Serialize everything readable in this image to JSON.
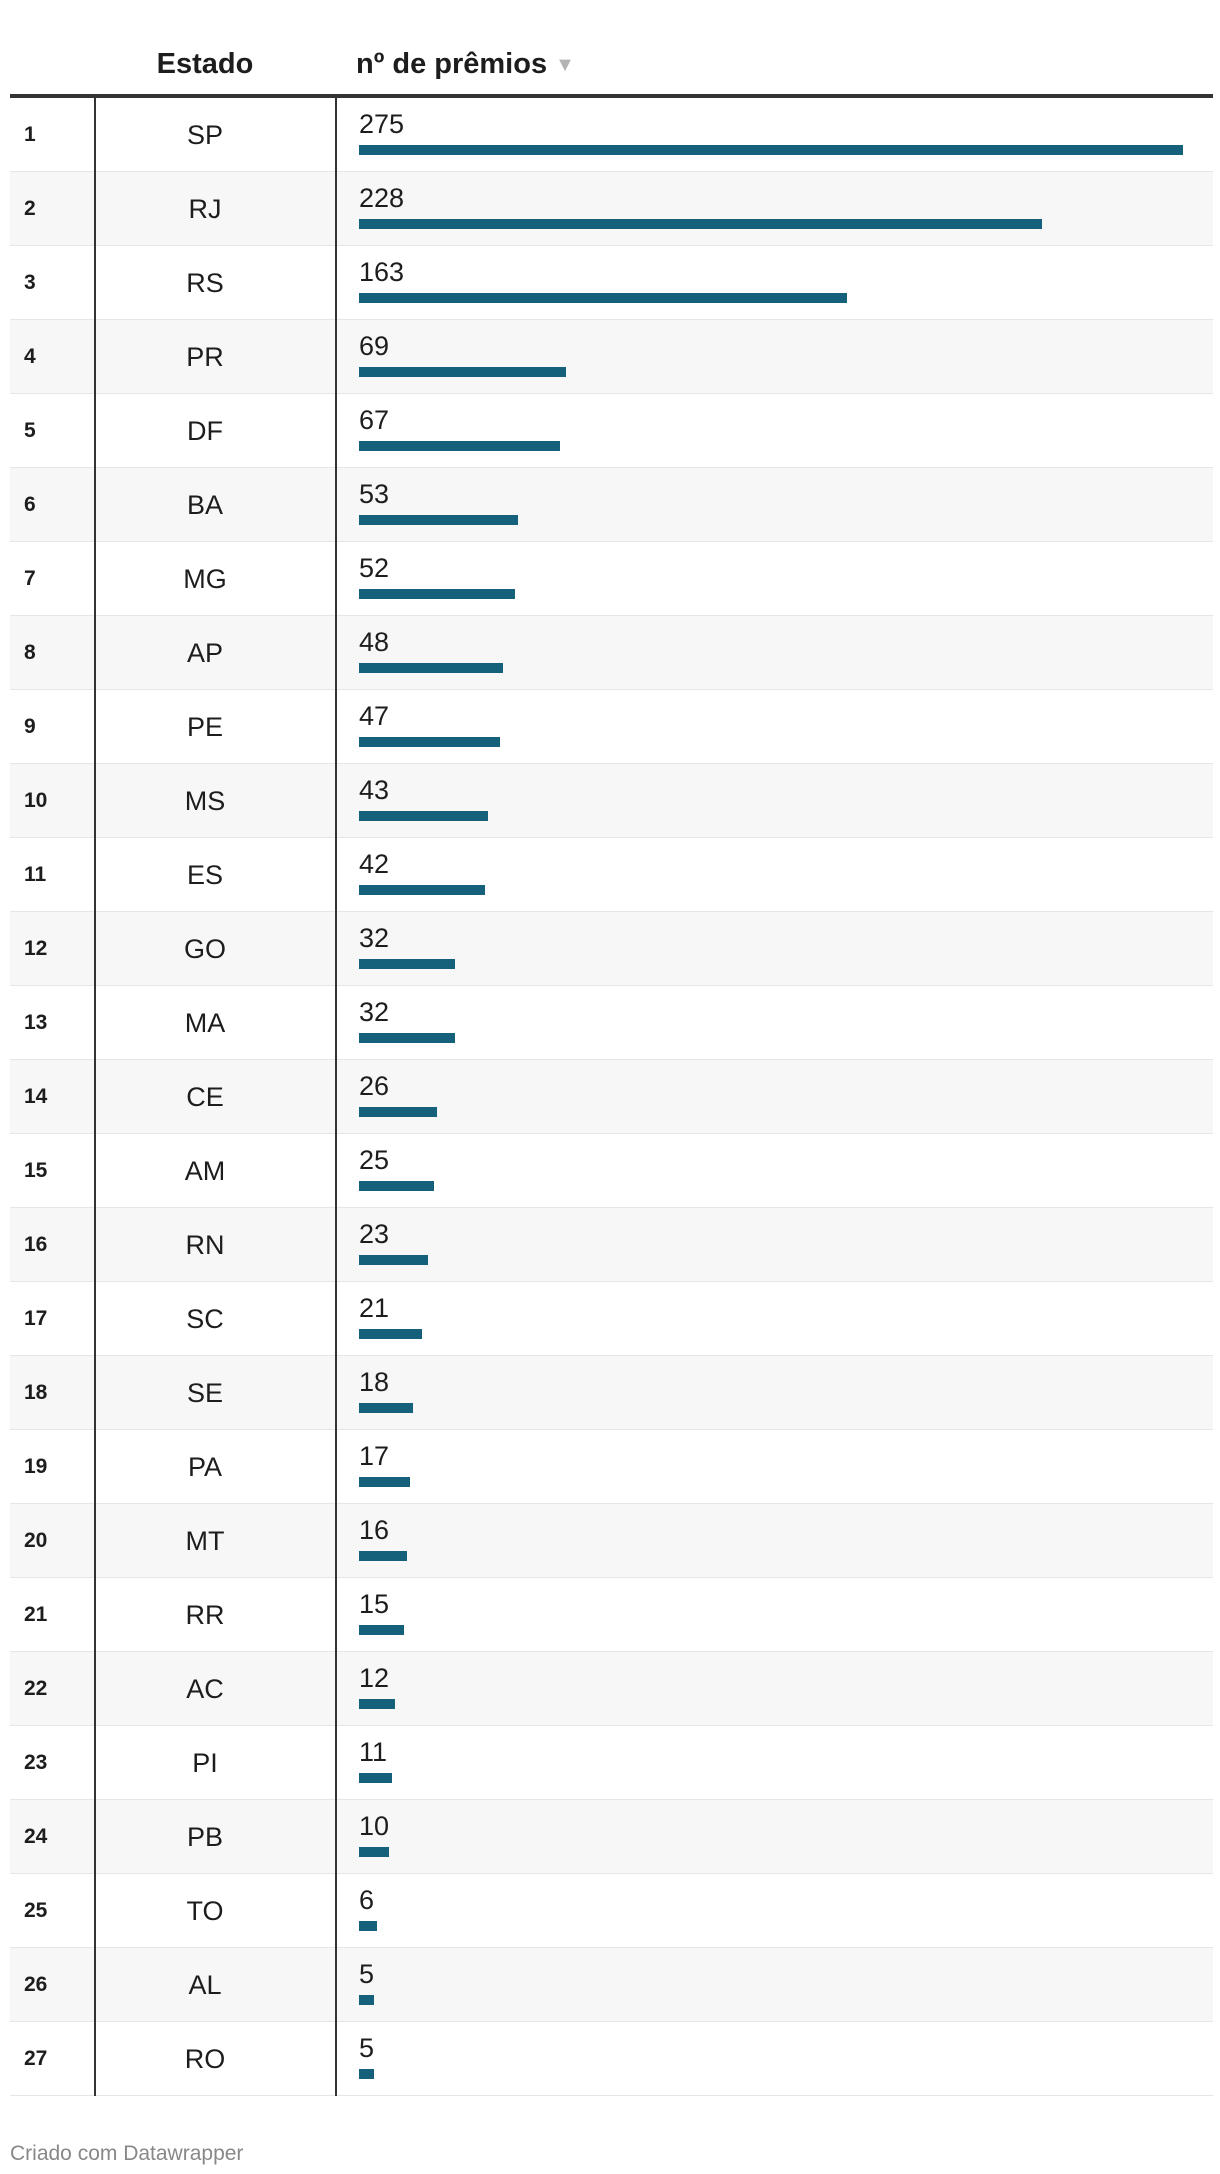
{
  "chart_data": {
    "type": "table",
    "columns": [
      "",
      "Estado",
      "nº de prêmios"
    ],
    "sort_icon": "sort-descending-icon",
    "bar_color": "#15607a",
    "value_max": 275,
    "rows": [
      {
        "rank": "1",
        "state": "SP",
        "value": 275
      },
      {
        "rank": "2",
        "state": "RJ",
        "value": 228
      },
      {
        "rank": "3",
        "state": "RS",
        "value": 163
      },
      {
        "rank": "4",
        "state": "PR",
        "value": 69
      },
      {
        "rank": "5",
        "state": "DF",
        "value": 67
      },
      {
        "rank": "6",
        "state": "BA",
        "value": 53
      },
      {
        "rank": "7",
        "state": "MG",
        "value": 52
      },
      {
        "rank": "8",
        "state": "AP",
        "value": 48
      },
      {
        "rank": "9",
        "state": "PE",
        "value": 47
      },
      {
        "rank": "10",
        "state": "MS",
        "value": 43
      },
      {
        "rank": "11",
        "state": "ES",
        "value": 42
      },
      {
        "rank": "12",
        "state": "GO",
        "value": 32
      },
      {
        "rank": "13",
        "state": "MA",
        "value": 32
      },
      {
        "rank": "14",
        "state": "CE",
        "value": 26
      },
      {
        "rank": "15",
        "state": "AM",
        "value": 25
      },
      {
        "rank": "16",
        "state": "RN",
        "value": 23
      },
      {
        "rank": "17",
        "state": "SC",
        "value": 21
      },
      {
        "rank": "18",
        "state": "SE",
        "value": 18
      },
      {
        "rank": "19",
        "state": "PA",
        "value": 17
      },
      {
        "rank": "20",
        "state": "MT",
        "value": 16
      },
      {
        "rank": "21",
        "state": "RR",
        "value": 15
      },
      {
        "rank": "22",
        "state": "AC",
        "value": 12
      },
      {
        "rank": "23",
        "state": "PI",
        "value": 11
      },
      {
        "rank": "24",
        "state": "PB",
        "value": 10
      },
      {
        "rank": "25",
        "state": "TO",
        "value": 6
      },
      {
        "rank": "26",
        "state": "AL",
        "value": 5
      },
      {
        "rank": "27",
        "state": "RO",
        "value": 5
      }
    ]
  },
  "footer": {
    "credit": "Criado com Datawrapper"
  }
}
